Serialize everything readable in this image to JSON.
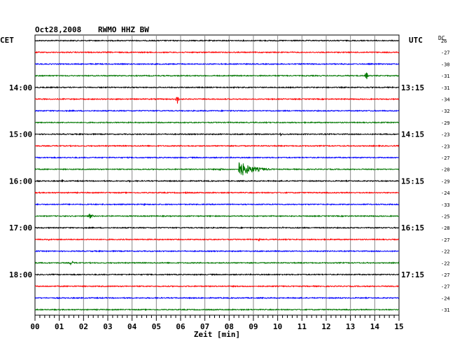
{
  "header": {
    "date": "Oct28,2008",
    "station": "RWMO HHZ BW",
    "left_tz": "CET",
    "right_tz": "UTC",
    "dc_label": "DC"
  },
  "chart_data": {
    "type": "line",
    "title": "Oct28,2008   RWMO HHZ BW",
    "xlabel": "Zeit [min]",
    "x_ticks": [
      "00",
      "01",
      "02",
      "03",
      "04",
      "05",
      "06",
      "07",
      "08",
      "09",
      "10",
      "11",
      "12",
      "13",
      "14",
      "15"
    ],
    "xlim": [
      0,
      15
    ],
    "grid": true,
    "colors": [
      "#000000",
      "#ff0000",
      "#0000ff",
      "#007700"
    ],
    "hour_labels_left": [
      {
        "row": 4,
        "label": "14:00"
      },
      {
        "row": 8,
        "label": "15:00"
      },
      {
        "row": 12,
        "label": "16:00"
      },
      {
        "row": 16,
        "label": "17:00"
      },
      {
        "row": 20,
        "label": "18:00"
      }
    ],
    "hour_labels_right": [
      {
        "row": 4,
        "label": "13:15"
      },
      {
        "row": 8,
        "label": "14:15"
      },
      {
        "row": 12,
        "label": "15:15"
      },
      {
        "row": 16,
        "label": "16:15"
      },
      {
        "row": 20,
        "label": "17:15"
      }
    ],
    "dc_offsets": [
      "26",
      "-27",
      "-30",
      "-31",
      "-31",
      "-34",
      "-32",
      "-29",
      "-23",
      "-23",
      "-27",
      "-20",
      "-29",
      "-24",
      "-33",
      "-25",
      "-28",
      "-27",
      "-22",
      "-22",
      "-27",
      "-27",
      "-24",
      "-31"
    ],
    "traces": [
      {
        "events": []
      },
      {
        "events": []
      },
      {
        "events": []
      },
      {
        "events": [
          {
            "t": 13.65,
            "amp": 10,
            "dur": 0.12
          }
        ]
      },
      {
        "events": []
      },
      {
        "events": [
          {
            "t": 5.85,
            "amp": 9,
            "dur": 0.18
          }
        ]
      },
      {
        "events": []
      },
      {
        "events": []
      },
      {
        "events": [
          {
            "t": 10.1,
            "amp": 2.5,
            "dur": 0.25
          }
        ]
      },
      {
        "events": []
      },
      {
        "events": []
      },
      {
        "events": [
          {
            "t": 7.6,
            "amp": 3,
            "dur": 0.4
          },
          {
            "t": 8.4,
            "amp": 12,
            "dur": 1.6
          }
        ]
      },
      {
        "events": [
          {
            "t": 1.1,
            "amp": 2.5,
            "dur": 0.2
          },
          {
            "t": 3.9,
            "amp": 1.6,
            "dur": 0.2
          }
        ]
      },
      {
        "events": [
          {
            "t": 6.2,
            "amp": 2,
            "dur": 0.2
          }
        ]
      },
      {
        "events": [
          {
            "t": 4.5,
            "amp": 2,
            "dur": 0.3
          },
          {
            "t": 11.8,
            "amp": 1.6,
            "dur": 0.15
          }
        ]
      },
      {
        "events": [
          {
            "t": 2.25,
            "amp": 4.5,
            "dur": 0.35
          }
        ]
      },
      {
        "events": [
          {
            "t": 2.0,
            "amp": 1.5,
            "dur": 0.2
          },
          {
            "t": 10.2,
            "amp": 1.5,
            "dur": 0.3
          }
        ]
      },
      {
        "events": [
          {
            "t": 0.55,
            "amp": 2,
            "dur": 0.15
          },
          {
            "t": 9.2,
            "amp": 2.5,
            "dur": 0.25
          }
        ]
      },
      {
        "events": []
      },
      {
        "events": [
          {
            "t": 1.45,
            "amp": 4,
            "dur": 0.35
          }
        ]
      },
      {
        "events": []
      },
      {
        "events": []
      },
      {
        "events": []
      },
      {
        "events": []
      }
    ]
  }
}
